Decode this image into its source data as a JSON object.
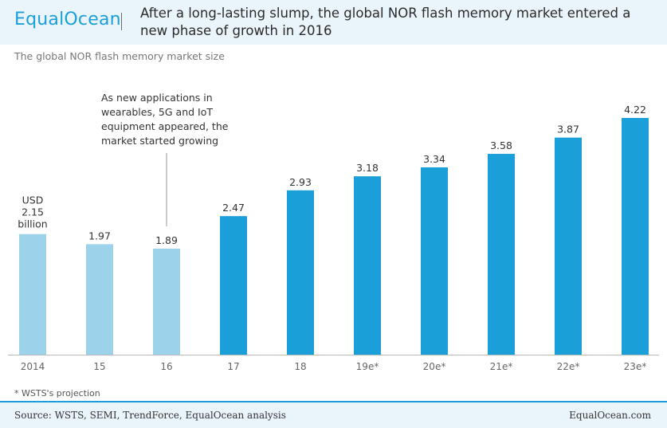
{
  "brand": {
    "logo_text": "EqualOcean",
    "colors": {
      "accent": "#1a9fd8",
      "light_bar": "#9dd3ea",
      "dark_bar": "#1a9fd8"
    }
  },
  "header": {
    "headline": "After a long-lasting slump, the global NOR flash memory market entered a new phase of growth in 2016"
  },
  "subtitle": "The global NOR flash memory market size",
  "annotation": "As new applications in wearables, 5G and IoT equipment appeared, the market started growing",
  "unit_label": {
    "line1": "USD",
    "line3": "billion"
  },
  "chart_data": {
    "type": "bar",
    "categories": [
      "2014",
      "15",
      "16",
      "17",
      "18",
      "19e*",
      "20e*",
      "21e*",
      "22e*",
      "23e*"
    ],
    "values": [
      2.15,
      1.97,
      1.89,
      2.47,
      2.93,
      3.18,
      3.34,
      3.58,
      3.87,
      4.22
    ],
    "value_labels": [
      "2.15",
      "1.97",
      "1.89",
      "2.47",
      "2.93",
      "3.18",
      "3.34",
      "3.58",
      "3.87",
      "4.22"
    ],
    "highlight_from_index": 3,
    "title": "",
    "ylabel": "USD billion",
    "ylim": [
      0,
      4.22
    ],
    "grid": false,
    "legend": "none"
  },
  "footnote": "* WSTS's projection",
  "footer": {
    "source": "Source: WSTS, SEMI, TrendForce, EqualOcean analysis",
    "site": "EqualOcean.com"
  }
}
